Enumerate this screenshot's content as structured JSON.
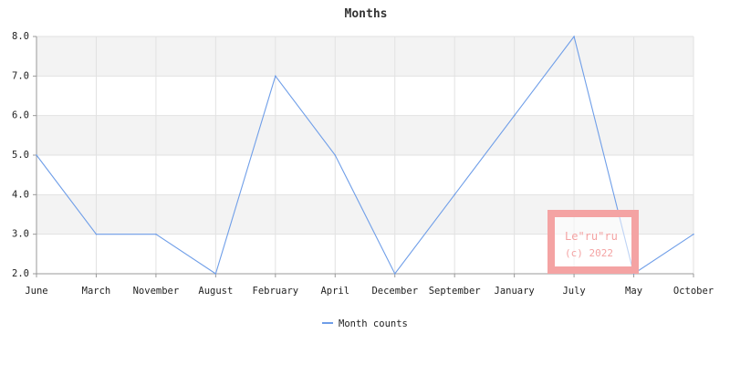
{
  "chart_data": {
    "type": "line",
    "title": "Months",
    "xlabel": "",
    "ylabel": "",
    "categories": [
      "June",
      "March",
      "November",
      "August",
      "February",
      "April",
      "December",
      "September",
      "January",
      "July",
      "May",
      "October"
    ],
    "series": [
      {
        "name": "Month counts",
        "values": [
          5,
          3,
          3,
          2,
          7,
          5,
          2,
          4,
          6,
          8,
          2,
          3
        ],
        "color": "#6f9ee8"
      }
    ],
    "ylim": [
      2,
      8
    ],
    "yticks": [
      "2.0",
      "3.0",
      "4.0",
      "5.0",
      "6.0",
      "7.0",
      "8.0"
    ],
    "grid": true,
    "band_colors": [
      "#f3f3f3",
      "#ffffff"
    ],
    "legend": "bottom-center"
  },
  "watermark": {
    "line1": "Le\"ru\"ru",
    "line2": "(c) 2022",
    "color": "#f4a3a3"
  }
}
